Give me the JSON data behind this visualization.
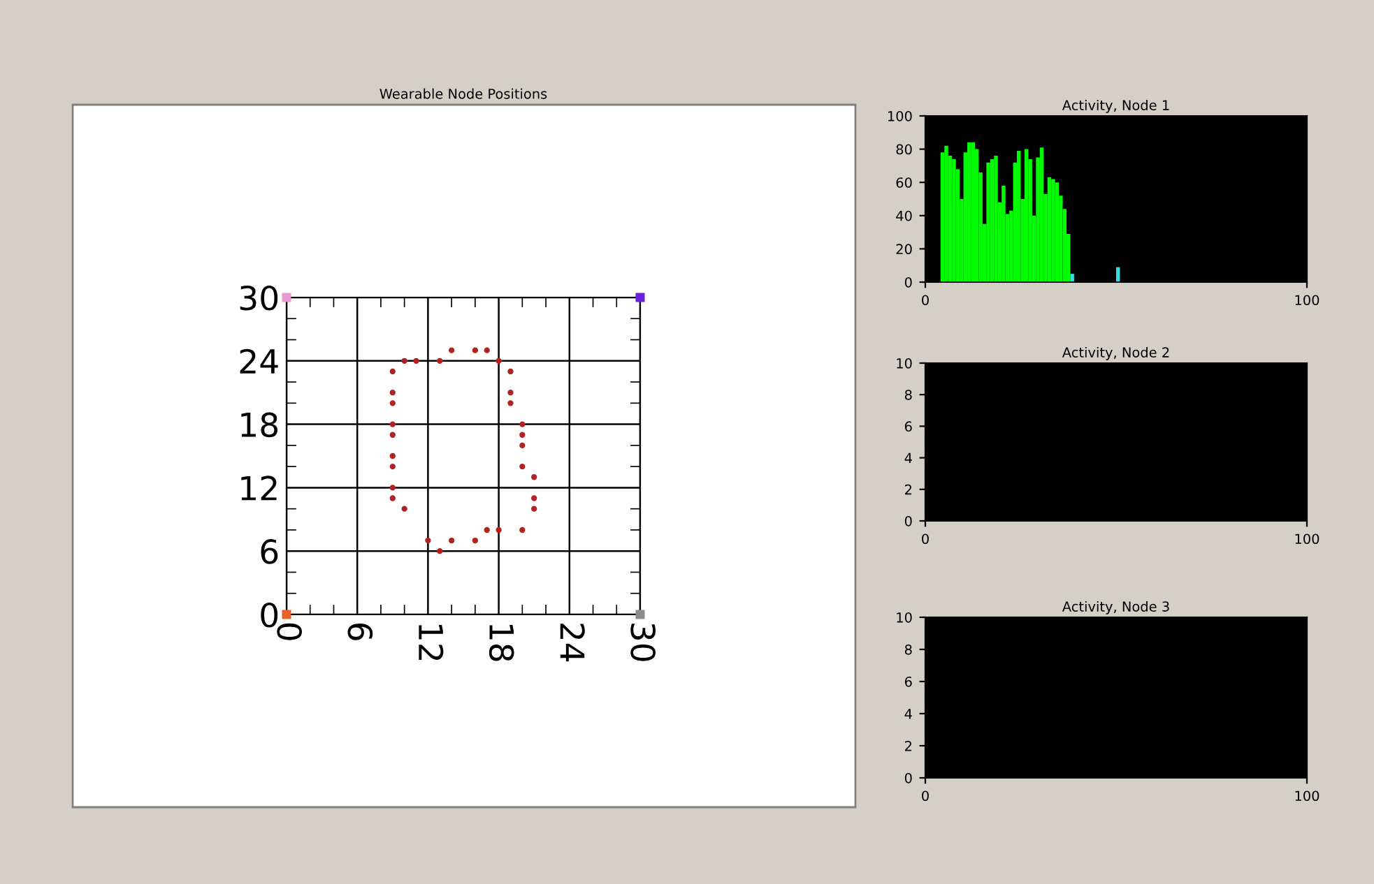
{
  "chart_data": [
    {
      "type": "scatter",
      "title": "Wearable Node Positions",
      "xlim": [
        0,
        30
      ],
      "ylim": [
        0,
        30
      ],
      "xticks": [
        0,
        6,
        12,
        18,
        24,
        30
      ],
      "yticks": [
        0,
        6,
        12,
        18,
        24,
        30
      ],
      "grid": true,
      "marker": "circle",
      "series": [
        {
          "color": "#b22222",
          "x": [
            10,
            11,
            13,
            14,
            16,
            17,
            18,
            19,
            19,
            19,
            20,
            20,
            20,
            20,
            21,
            21,
            21,
            20,
            18,
            17,
            16,
            14,
            13,
            12,
            10,
            9,
            9,
            9,
            9,
            9,
            9,
            9,
            9,
            9
          ],
          "values": [
            24,
            24,
            24,
            25,
            25,
            25,
            24,
            23,
            21,
            20,
            18,
            17,
            16,
            14,
            13,
            11,
            10,
            8,
            8,
            8,
            7,
            7,
            6,
            7,
            10,
            11,
            12,
            14,
            15,
            17,
            18,
            20,
            21,
            23
          ]
        },
        {
          "x": [
            0,
            30,
            0,
            30
          ],
          "values": [
            30,
            30,
            0,
            0
          ],
          "colors": [
            "#e89ad0",
            "#6a1fd8",
            "#e8602c",
            "#8c8c8c"
          ],
          "marker": "square"
        }
      ]
    },
    {
      "type": "bar",
      "title": "Activity, Node 1",
      "xlim": [
        0,
        100
      ],
      "ylim": [
        0,
        100
      ],
      "xticks": [
        0,
        100
      ],
      "yticks": [
        0,
        20,
        40,
        60,
        80,
        100
      ],
      "series": [
        {
          "color": "#00ff00",
          "x": [
            4,
            5,
            6,
            7,
            8,
            9,
            10,
            11,
            12,
            13,
            14,
            15,
            16,
            17,
            18,
            19,
            20,
            21,
            22,
            23,
            24,
            25,
            26,
            27,
            28,
            29,
            30,
            31,
            32,
            33,
            34,
            35,
            36,
            37
          ],
          "values": [
            78,
            82,
            76,
            74,
            68,
            50,
            78,
            84,
            84,
            80,
            66,
            35,
            72,
            74,
            76,
            48,
            58,
            41,
            43,
            72,
            79,
            50,
            80,
            74,
            40,
            75,
            81,
            53,
            63,
            62,
            60,
            52,
            44,
            29
          ]
        },
        {
          "color": "#33dddd",
          "x": [
            38,
            50
          ],
          "values": [
            5,
            9
          ]
        }
      ]
    },
    {
      "type": "bar",
      "title": "Activity, Node 2",
      "xlim": [
        0,
        100
      ],
      "ylim": [
        0,
        10
      ],
      "xticks": [
        0,
        100
      ],
      "yticks": [
        0,
        2,
        4,
        6,
        8,
        10
      ]
    },
    {
      "type": "bar",
      "title": "Activity, Node 3",
      "xlim": [
        0,
        100
      ],
      "ylim": [
        0,
        10
      ],
      "xticks": [
        0,
        100
      ],
      "yticks": [
        0,
        2,
        4,
        6,
        8,
        10
      ]
    }
  ]
}
